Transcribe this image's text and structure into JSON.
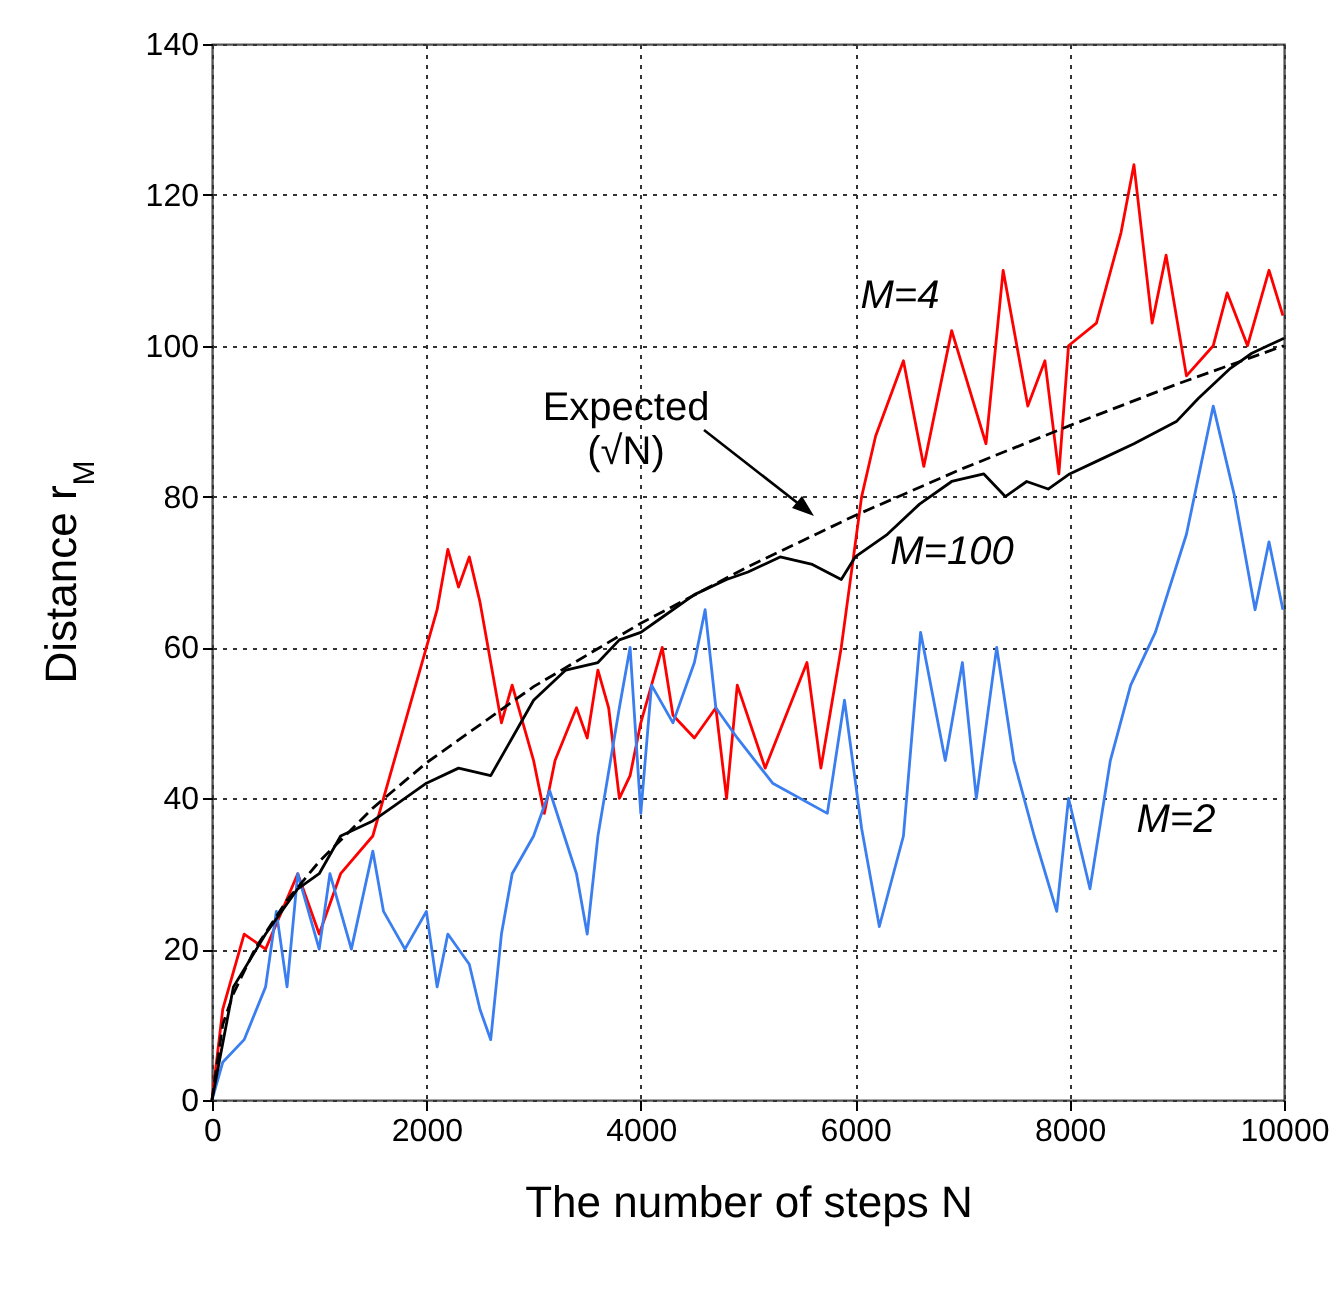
{
  "chart_data": {
    "type": "line",
    "xlabel": "The number of steps N",
    "ylabel": "Distance r$_{M}$",
    "xlim": [
      0,
      10000
    ],
    "ylim": [
      0,
      140
    ],
    "xticks": [
      0,
      2000,
      4000,
      6000,
      8000,
      10000
    ],
    "yticks": [
      0,
      20,
      40,
      60,
      80,
      100,
      120,
      140
    ],
    "grid": true,
    "line_style": "solid",
    "series": [
      {
        "name": "M=4",
        "color": "#ff0000",
        "x": [
          0,
          100,
          300,
          500,
          800,
          1000,
          1200,
          1500,
          1700,
          1800,
          2000,
          2100,
          2200,
          2300,
          2400,
          2500,
          2600,
          2700,
          2800,
          2900,
          3000,
          3100,
          3200,
          3400,
          3500,
          3600,
          3700,
          3800,
          3900,
          4000,
          4200,
          4300,
          4500,
          4700,
          4800,
          4900,
          5160,
          5550,
          5680,
          5870,
          6060,
          6190,
          6450,
          6640,
          6900,
          7220,
          7380,
          7610,
          7770,
          7900,
          7990,
          8250,
          8480,
          8600,
          8770,
          8900,
          9090,
          9340,
          9470,
          9660,
          9860,
          9990
        ],
        "values": [
          0,
          12,
          22,
          20,
          30,
          22,
          30,
          35,
          45,
          50,
          60,
          65,
          73,
          68,
          72,
          66,
          58,
          50,
          55,
          50,
          45,
          38,
          45,
          52,
          48,
          57,
          52,
          40,
          43,
          50,
          60,
          51,
          48,
          52,
          40,
          55,
          44,
          58,
          44,
          60,
          80,
          88,
          98,
          84,
          102,
          87,
          110,
          92,
          98,
          83,
          100,
          103,
          115,
          124,
          103,
          112,
          96,
          100,
          107,
          100,
          110,
          104
        ]
      },
      {
        "name": "M=2",
        "color": "#3a7ef0",
        "x": [
          0,
          100,
          300,
          500,
          600,
          700,
          800,
          1000,
          1100,
          1300,
          1500,
          1600,
          1800,
          2000,
          2100,
          2200,
          2400,
          2500,
          2600,
          2700,
          2800,
          3000,
          3150,
          3400,
          3500,
          3600,
          3800,
          3900,
          4000,
          4100,
          4300,
          4500,
          4600,
          4700,
          4900,
          5230,
          5740,
          5900,
          6060,
          6225,
          6450,
          6610,
          6840,
          7000,
          7130,
          7320,
          7480,
          7670,
          7880,
          7990,
          8190,
          8380,
          8570,
          8800,
          9090,
          9340,
          9540,
          9730,
          9860,
          9990
        ],
        "values": [
          0,
          5,
          8,
          15,
          25,
          15,
          30,
          20,
          30,
          20,
          33,
          25,
          20,
          25,
          15,
          22,
          18,
          12,
          8,
          22,
          30,
          35,
          41,
          30,
          22,
          35,
          52,
          60,
          38,
          55,
          50,
          58,
          65,
          52,
          48,
          42,
          38,
          53,
          36,
          23,
          35,
          62,
          45,
          58,
          40,
          60,
          45,
          35,
          25,
          40,
          28,
          45,
          55,
          62,
          75,
          92,
          80,
          65,
          74,
          65
        ]
      },
      {
        "name": "M=100",
        "color": "#000000",
        "x": [
          0,
          200,
          500,
          800,
          1000,
          1200,
          1500,
          1700,
          2000,
          2300,
          2600,
          2800,
          3000,
          3300,
          3600,
          3800,
          4000,
          4200,
          4500,
          4800,
          5000,
          5300,
          5600,
          5870,
          6000,
          6300,
          6600,
          6900,
          7200,
          7400,
          7600,
          7800,
          8000,
          8300,
          8600,
          9000,
          9200,
          9500,
          9700,
          10000
        ],
        "values": [
          0,
          15,
          22,
          28,
          30,
          35,
          37,
          39,
          42,
          44,
          43,
          48,
          53,
          57,
          58,
          61,
          62,
          64,
          67,
          69,
          70,
          72,
          71,
          69,
          72,
          75,
          79,
          82,
          83,
          80,
          82,
          81,
          83,
          85,
          87,
          90,
          93,
          97,
          99,
          101
        ]
      },
      {
        "name": "Expected (√N)",
        "color": "#000000",
        "line_style": "dashed",
        "x": [
          0,
          100,
          200,
          400,
          700,
          1000,
          1500,
          2000,
          3000,
          4000,
          5000,
          6000,
          7000,
          8000,
          9000,
          10000
        ],
        "values": [
          0,
          10,
          14.1,
          20,
          26.5,
          31.6,
          38.7,
          44.7,
          54.8,
          63.2,
          70.7,
          77.5,
          83.7,
          89.4,
          94.9,
          100
        ]
      }
    ]
  }
}
